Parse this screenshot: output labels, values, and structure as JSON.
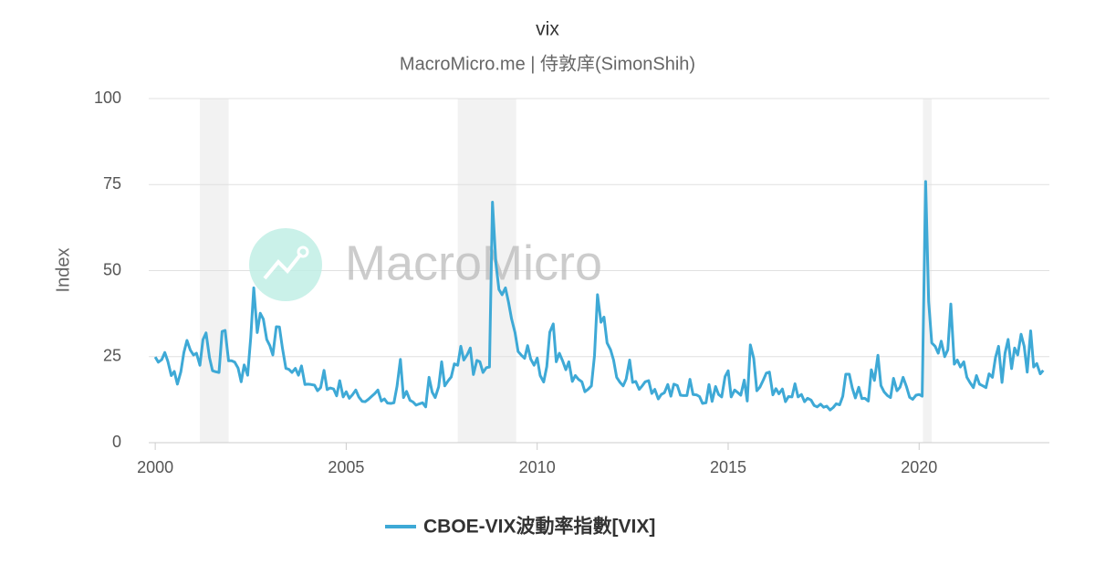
{
  "chart_data": {
    "type": "line",
    "title": "vix",
    "subtitle": "MacroMicro.me | 侍敦庠(SimonShih)",
    "y_label": "Index",
    "watermark": "MacroMicro",
    "xlim": [
      1999.83,
      2023.41
    ],
    "xticks": [
      2000,
      2005,
      2010,
      2015,
      2020
    ],
    "ylim": [
      0,
      100
    ],
    "yticks": [
      0,
      25,
      50,
      75,
      100
    ],
    "grid": true,
    "legend": "bottom",
    "recessions": [
      [
        2001.17,
        2001.92
      ],
      [
        2007.92,
        2009.45
      ],
      [
        2020.1,
        2020.33
      ]
    ],
    "x": [
      2000,
      2000.08,
      2000.17,
      2000.25,
      2000.33,
      2000.42,
      2000.5,
      2000.58,
      2000.67,
      2000.75,
      2000.83,
      2000.92,
      2001,
      2001.08,
      2001.17,
      2001.25,
      2001.33,
      2001.42,
      2001.5,
      2001.58,
      2001.67,
      2001.75,
      2001.83,
      2001.92,
      2002,
      2002.08,
      2002.17,
      2002.25,
      2002.33,
      2002.42,
      2002.5,
      2002.58,
      2002.67,
      2002.75,
      2002.83,
      2002.92,
      2003,
      2003.08,
      2003.17,
      2003.25,
      2003.33,
      2003.42,
      2003.5,
      2003.58,
      2003.67,
      2003.75,
      2003.83,
      2003.92,
      2004,
      2004.08,
      2004.17,
      2004.25,
      2004.33,
      2004.42,
      2004.5,
      2004.58,
      2004.67,
      2004.75,
      2004.83,
      2004.92,
      2005,
      2005.08,
      2005.17,
      2005.25,
      2005.33,
      2005.42,
      2005.5,
      2005.58,
      2005.67,
      2005.75,
      2005.83,
      2005.92,
      2006,
      2006.08,
      2006.17,
      2006.25,
      2006.33,
      2006.42,
      2006.5,
      2006.58,
      2006.67,
      2006.75,
      2006.83,
      2006.92,
      2007,
      2007.08,
      2007.17,
      2007.25,
      2007.33,
      2007.42,
      2007.5,
      2007.58,
      2007.67,
      2007.75,
      2007.83,
      2007.92,
      2008,
      2008.08,
      2008.17,
      2008.25,
      2008.33,
      2008.42,
      2008.5,
      2008.58,
      2008.67,
      2008.75,
      2008.83,
      2008.92,
      2009,
      2009.08,
      2009.17,
      2009.25,
      2009.33,
      2009.42,
      2009.5,
      2009.58,
      2009.67,
      2009.75,
      2009.83,
      2009.92,
      2010,
      2010.08,
      2010.17,
      2010.25,
      2010.33,
      2010.42,
      2010.5,
      2010.58,
      2010.67,
      2010.75,
      2010.83,
      2010.92,
      2011,
      2011.08,
      2011.17,
      2011.25,
      2011.33,
      2011.42,
      2011.5,
      2011.58,
      2011.67,
      2011.75,
      2011.83,
      2011.92,
      2012,
      2012.08,
      2012.17,
      2012.25,
      2012.33,
      2012.42,
      2012.5,
      2012.58,
      2012.67,
      2012.75,
      2012.83,
      2012.92,
      2013,
      2013.08,
      2013.17,
      2013.25,
      2013.33,
      2013.42,
      2013.5,
      2013.58,
      2013.67,
      2013.75,
      2013.83,
      2013.92,
      2014,
      2014.08,
      2014.17,
      2014.25,
      2014.33,
      2014.42,
      2014.5,
      2014.58,
      2014.67,
      2014.75,
      2014.83,
      2014.92,
      2015,
      2015.08,
      2015.17,
      2015.25,
      2015.33,
      2015.42,
      2015.5,
      2015.58,
      2015.67,
      2015.75,
      2015.83,
      2015.92,
      2016,
      2016.08,
      2016.17,
      2016.25,
      2016.33,
      2016.42,
      2016.5,
      2016.58,
      2016.67,
      2016.75,
      2016.83,
      2016.92,
      2017,
      2017.08,
      2017.17,
      2017.25,
      2017.33,
      2017.42,
      2017.5,
      2017.58,
      2017.67,
      2017.75,
      2017.83,
      2017.92,
      2018,
      2018.08,
      2018.17,
      2018.25,
      2018.33,
      2018.42,
      2018.5,
      2018.58,
      2018.67,
      2018.75,
      2018.83,
      2018.92,
      2019,
      2019.08,
      2019.17,
      2019.25,
      2019.33,
      2019.42,
      2019.5,
      2019.58,
      2019.67,
      2019.75,
      2019.83,
      2019.92,
      2020,
      2020.08,
      2020.17,
      2020.25,
      2020.33,
      2020.42,
      2020.5,
      2020.58,
      2020.67,
      2020.75,
      2020.83,
      2020.92,
      2021,
      2021.08,
      2021.17,
      2021.25,
      2021.33,
      2021.42,
      2021.5,
      2021.58,
      2021.67,
      2021.75,
      2021.83,
      2021.92,
      2022,
      2022.08,
      2022.17,
      2022.25,
      2022.33,
      2022.42,
      2022.5,
      2022.58,
      2022.67,
      2022.75,
      2022.83,
      2022.92,
      2023,
      2023.08,
      2023.17,
      2023.25
    ],
    "series": [
      {
        "name": "CBOE-VIX波動率指數[VIX]",
        "color": "#3ea9d6",
        "values": [
          24.9,
          23.4,
          24.1,
          26.2,
          23.7,
          19.5,
          20.7,
          17.0,
          20.6,
          26.2,
          29.7,
          26.9,
          25.5,
          26.0,
          22.5,
          29.9,
          31.9,
          24.7,
          20.9,
          20.6,
          20.4,
          32.3,
          32.6,
          23.8,
          23.8,
          23.4,
          21.7,
          17.7,
          22.6,
          19.6,
          30.6,
          45.0,
          32.0,
          37.6,
          35.9,
          30.0,
          28.2,
          25.5,
          33.7,
          33.6,
          27.5,
          21.6,
          21.3,
          20.4,
          21.6,
          19.6,
          22.3,
          16.9,
          17.0,
          16.9,
          16.7,
          15.1,
          16.0,
          21.0,
          15.4,
          15.9,
          15.6,
          13.6,
          18.0,
          13.3,
          14.8,
          12.9,
          14.0,
          15.3,
          13.3,
          12.0,
          11.9,
          12.6,
          13.5,
          14.3,
          15.3,
          12.1,
          12.7,
          11.5,
          11.4,
          11.6,
          16.4,
          24.2,
          13.1,
          14.9,
          12.3,
          11.8,
          10.9,
          11.3,
          11.6,
          10.4,
          19.0,
          14.7,
          13.1,
          16.2,
          23.5,
          16.5,
          18.0,
          19.1,
          22.9,
          22.5,
          28.0,
          24.0,
          25.6,
          27.5,
          19.8,
          23.9,
          23.5,
          20.4,
          21.8,
          22.0,
          69.9,
          52.0,
          44.5,
          43.0,
          45.0,
          40.8,
          36.0,
          32.0,
          26.5,
          25.5,
          24.5,
          28.2,
          24.3,
          22.5,
          24.6,
          19.5,
          17.6,
          22.1,
          32.1,
          34.5,
          23.5,
          26.0,
          23.7,
          21.2,
          23.5,
          17.8,
          19.5,
          18.4,
          17.7,
          14.8,
          15.5,
          16.5,
          25.3,
          43.0,
          35.0,
          36.5,
          29.0,
          27.0,
          24.0,
          19.0,
          17.5,
          16.5,
          18.5,
          24.0,
          17.5,
          17.8,
          15.5,
          16.5,
          17.7,
          18.0,
          14.3,
          15.5,
          12.7,
          14.0,
          14.5,
          16.9,
          13.5,
          17.0,
          16.6,
          13.8,
          13.7,
          13.7,
          18.4,
          14.0,
          13.9,
          13.4,
          11.4,
          11.6,
          16.9,
          12.0,
          16.3,
          14.0,
          13.3,
          19.2,
          20.9,
          13.3,
          15.3,
          14.6,
          13.8,
          18.2,
          12.1,
          28.4,
          24.5,
          15.1,
          16.1,
          18.2,
          20.2,
          20.5,
          13.9,
          15.7,
          14.2,
          15.6,
          11.9,
          13.4,
          13.3,
          17.1,
          13.3,
          14.0,
          11.9,
          12.9,
          12.4,
          10.8,
          10.4,
          11.2,
          10.3,
          10.6,
          9.5,
          10.2,
          11.3,
          11.0,
          13.5,
          19.9,
          19.9,
          15.9,
          13.0,
          16.1,
          12.8,
          12.9,
          12.1,
          21.2,
          18.1,
          25.4,
          16.6,
          14.8,
          13.7,
          13.1,
          18.7,
          15.1,
          16.1,
          19.0,
          16.2,
          13.2,
          12.6,
          13.8,
          14.0,
          13.5,
          75.9,
          41.0,
          29.0,
          28.0,
          26.0,
          29.5,
          25.0,
          27.0,
          40.3,
          22.8,
          24.0,
          22.0,
          23.5,
          19.0,
          17.5,
          16.0,
          19.5,
          17.0,
          16.5,
          16.0,
          20.0,
          19.0,
          24.8,
          28.0,
          17.5,
          26.0,
          30.0,
          21.5,
          27.5,
          25.5,
          31.5,
          28.0,
          20.5,
          32.5,
          22.0,
          23.0,
          20.0,
          21.0
        ]
      }
    ]
  }
}
